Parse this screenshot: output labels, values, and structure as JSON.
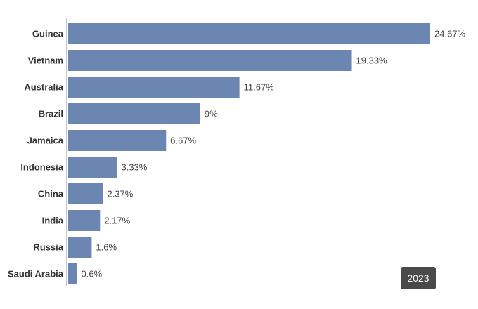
{
  "chart_data": {
    "type": "bar",
    "orientation": "horizontal",
    "categories": [
      "Guinea",
      "Vietnam",
      "Australia",
      "Brazil",
      "Jamaica",
      "Indonesia",
      "China",
      "India",
      "Russia",
      "Saudi Arabia"
    ],
    "values": [
      24.67,
      19.33,
      11.67,
      9,
      6.67,
      3.33,
      2.37,
      2.17,
      1.6,
      0.6
    ],
    "value_labels": [
      "24.67%",
      "19.33%",
      "11.67%",
      "9%",
      "6.67%",
      "3.33%",
      "2.37%",
      "2.17%",
      "1.6%",
      "0.6%"
    ],
    "xlim": [
      0,
      24.67
    ],
    "grid": false,
    "bar_color": "#6b86b0",
    "axis_color": "#aab4c8"
  },
  "year_badge": "2023"
}
